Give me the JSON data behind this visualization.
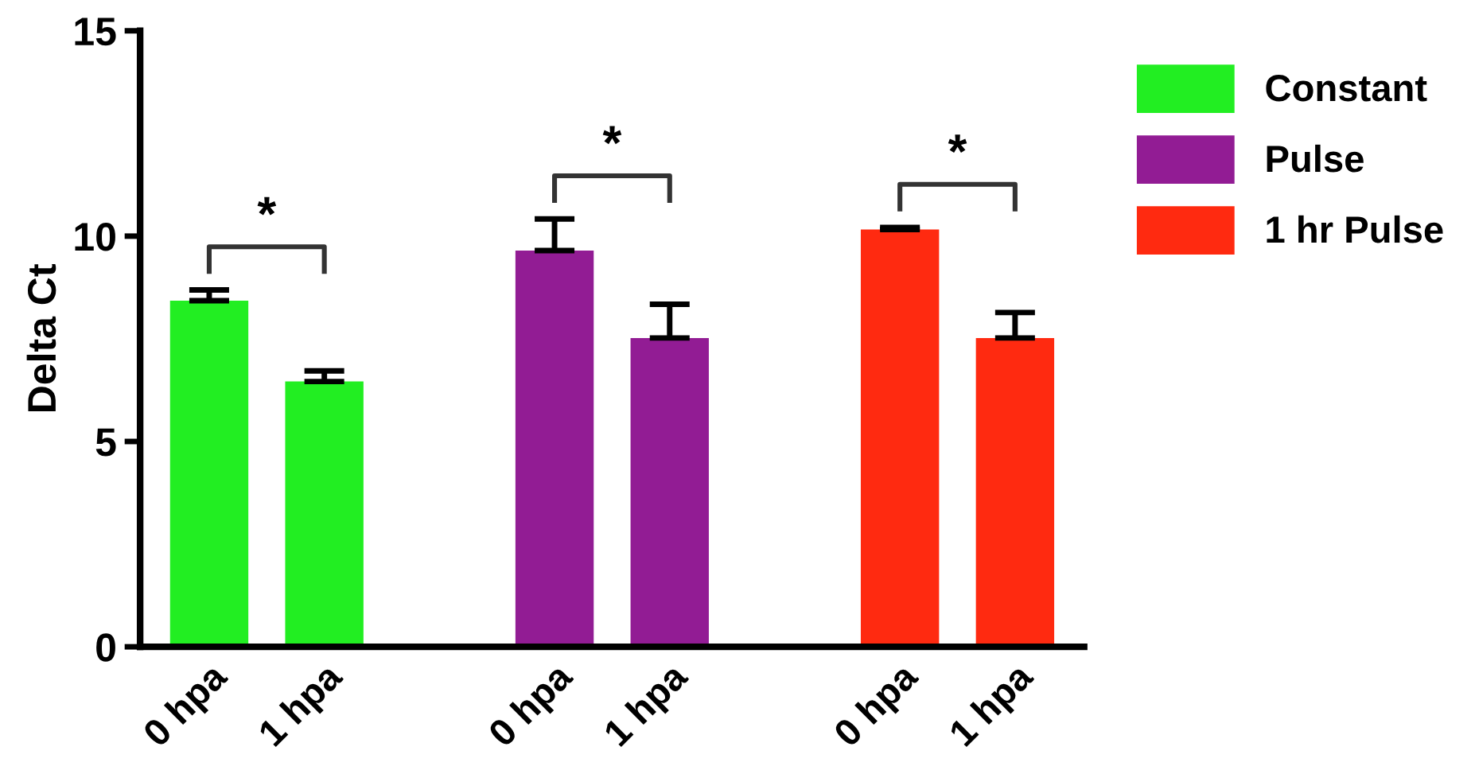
{
  "chart_data": {
    "type": "bar",
    "ylabel": "Delta Ct",
    "categories": [
      "0 hpa",
      "1 hpa",
      null,
      "0 hpa",
      "1 hpa",
      null,
      "0 hpa",
      "1 hpa"
    ],
    "series": [
      {
        "name": "Constant",
        "color": "#22ee22",
        "values": [
          8.43,
          6.46,
          null,
          null,
          null,
          null,
          null,
          null
        ],
        "errors": [
          0.26,
          0.26,
          null,
          null,
          null,
          null,
          null,
          null
        ]
      },
      {
        "name": "Pulse",
        "color": "#921c94",
        "values": [
          null,
          null,
          null,
          9.65,
          7.52,
          null,
          null,
          null
        ],
        "errors": [
          null,
          null,
          null,
          0.77,
          0.82,
          null,
          null,
          null
        ]
      },
      {
        "name": "1 hr Pulse",
        "color": "#ff2a10",
        "values": [
          null,
          null,
          null,
          null,
          null,
          null,
          10.16,
          7.52
        ],
        "errors": [
          null,
          null,
          null,
          null,
          null,
          null,
          0.05,
          0.62
        ]
      }
    ],
    "annotations": [
      "*",
      "*",
      "*"
    ],
    "ylim": [
      0,
      15
    ],
    "yticks": [
      0,
      5,
      10,
      15
    ],
    "grid": false,
    "legend": "top right"
  }
}
